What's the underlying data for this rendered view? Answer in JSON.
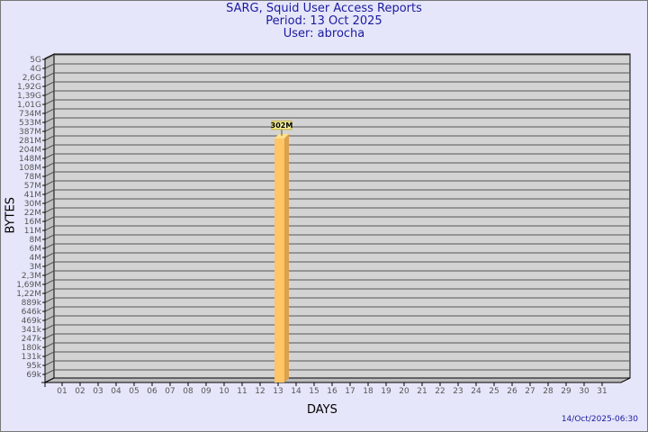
{
  "chart_data": {
    "type": "bar",
    "title": "SARG, Squid User Access Reports",
    "subtitle": [
      "Period: 13 Oct 2025",
      "User: abrocha"
    ],
    "xlabel": "DAYS",
    "ylabel": "BYTES",
    "y_scale": "log",
    "y_tick_labels": [
      "5G",
      "4G",
      "2,6G",
      "1,92G",
      "1,39G",
      "1,01G",
      "734M",
      "533M",
      "387M",
      "281M",
      "204M",
      "148M",
      "108M",
      "78M",
      "57M",
      "41M",
      "30M",
      "22M",
      "16M",
      "11M",
      "8M",
      "6M",
      "4M",
      "3M",
      "2,3M",
      "1,69M",
      "1,22M",
      "889k",
      "646k",
      "469k",
      "341k",
      "247k",
      "180k",
      "131k",
      "95k",
      "69k"
    ],
    "categories": [
      "01",
      "02",
      "03",
      "04",
      "05",
      "06",
      "07",
      "08",
      "09",
      "10",
      "11",
      "12",
      "13",
      "14",
      "15",
      "16",
      "17",
      "18",
      "19",
      "20",
      "21",
      "22",
      "23",
      "24",
      "25",
      "26",
      "27",
      "28",
      "29",
      "30",
      "31"
    ],
    "series": [
      {
        "values": [
          {
            "x": "13",
            "y": 302000000,
            "label": "302M"
          }
        ]
      }
    ],
    "grid": true,
    "colors": {
      "bar": "#ffc566",
      "bar_side": "#dba24a",
      "plot": "#d3d3d3",
      "background": "#e6e6fa",
      "title": "#1a1aa0"
    }
  },
  "footer": {
    "timestamp": "14/Oct/2025-06:30"
  }
}
